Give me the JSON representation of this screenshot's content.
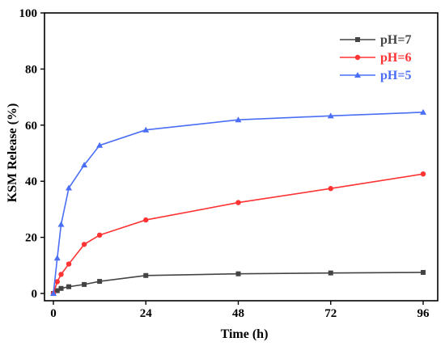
{
  "chart_data": {
    "type": "line",
    "title": "",
    "xlabel": "Time (h)",
    "ylabel": "KSM Release (%)",
    "xlim": [
      0,
      96
    ],
    "ylim": [
      0,
      100
    ],
    "xticks": [
      0,
      24,
      48,
      72,
      96
    ],
    "yticks": [
      0,
      20,
      40,
      60,
      80,
      100
    ],
    "grid": false,
    "legend_position": "top-right",
    "series": [
      {
        "name": "pH=7",
        "color": "#444444",
        "marker": "square",
        "x": [
          0,
          1,
          2,
          4,
          8,
          12,
          24,
          48,
          72,
          96
        ],
        "y": [
          0,
          1.0,
          1.8,
          2.4,
          3.2,
          4.3,
          6.4,
          7.0,
          7.3,
          7.5
        ]
      },
      {
        "name": "pH=6",
        "color": "#ff3333",
        "marker": "circle",
        "x": [
          0,
          1,
          2,
          4,
          8,
          12,
          24,
          48,
          72,
          96
        ],
        "y": [
          0,
          4.2,
          6.8,
          10.5,
          17.5,
          20.8,
          26.2,
          32.4,
          37.4,
          42.6
        ]
      },
      {
        "name": "pH=5",
        "color": "#4a6ef5",
        "marker": "triangle",
        "x": [
          0,
          1,
          2,
          4,
          8,
          12,
          24,
          48,
          72,
          96
        ],
        "y": [
          0,
          12.6,
          24.6,
          37.6,
          45.8,
          52.8,
          58.3,
          61.9,
          63.3,
          64.6
        ]
      }
    ]
  }
}
